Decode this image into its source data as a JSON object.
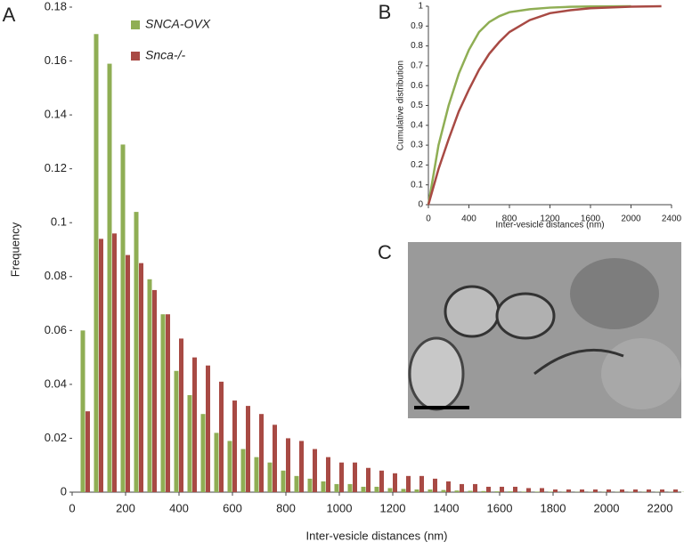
{
  "chart_data": [
    {
      "type": "bar",
      "panel_label": "A",
      "x_label": "Inter-vesicle distances (nm)",
      "y_label": "Frequency",
      "legend": "upper-left",
      "x": [
        50,
        100,
        150,
        200,
        250,
        300,
        350,
        400,
        450,
        500,
        550,
        600,
        650,
        700,
        750,
        800,
        850,
        900,
        950,
        1000,
        1050,
        1100,
        1150,
        1200,
        1250,
        1300,
        1350,
        1400,
        1450,
        1500,
        1550,
        1600,
        1650,
        1700,
        1750,
        1800,
        1850,
        1900,
        1950,
        2000,
        2050,
        2100,
        2150,
        2200,
        2250,
        2300,
        2350
      ],
      "series": [
        {
          "name": "SNCA-OVX",
          "color": "#8fae54",
          "values": [
            0.06,
            0.17,
            0.159,
            0.129,
            0.104,
            0.079,
            0.066,
            0.045,
            0.036,
            0.029,
            0.022,
            0.019,
            0.016,
            0.013,
            0.011,
            0.008,
            0.006,
            0.005,
            0.004,
            0.003,
            0.003,
            0.002,
            0.002,
            0.0015,
            0.0012,
            0.001,
            0.001,
            0.0008,
            0.0006,
            0.0005,
            0.0004,
            0.0003,
            0.0003,
            0.0002,
            0.0002,
            0.0002,
            0.0001,
            0.0001,
            0.0001,
            0.0001,
            0.0001,
            0.0001,
            0.0001,
            0.0001,
            0.0001,
            0.0001,
            0.0001
          ]
        },
        {
          "name": "Snca-/-",
          "color": "#a84a44",
          "values": [
            0.03,
            0.094,
            0.096,
            0.088,
            0.085,
            0.075,
            0.066,
            0.057,
            0.05,
            0.047,
            0.041,
            0.034,
            0.032,
            0.029,
            0.025,
            0.02,
            0.019,
            0.016,
            0.013,
            0.011,
            0.011,
            0.009,
            0.008,
            0.007,
            0.006,
            0.006,
            0.005,
            0.004,
            0.003,
            0.003,
            0.002,
            0.002,
            0.002,
            0.0015,
            0.0015,
            0.001,
            0.001,
            0.001,
            0.001,
            0.001,
            0.001,
            0.001,
            0.001,
            0.001,
            0.001,
            0.001,
            0.001
          ]
        }
      ],
      "xlim": [
        0,
        2330
      ],
      "xticks": [
        0,
        200,
        400,
        600,
        800,
        1000,
        1200,
        1400,
        1600,
        1800,
        2000,
        2200
      ],
      "ylim": [
        0,
        0.18
      ],
      "yticks": [
        0,
        0.02,
        0.04,
        0.06,
        0.08,
        0.1,
        0.12,
        0.14,
        0.16,
        0.18
      ]
    },
    {
      "type": "line",
      "panel_label": "B",
      "x_label": "Inter-vesicle distances (nm)",
      "y_label": "Cumulative distribution",
      "x": [
        0,
        100,
        200,
        300,
        400,
        500,
        600,
        700,
        800,
        1000,
        1200,
        1400,
        1600,
        2000,
        2300
      ],
      "series": [
        {
          "name": "SNCA-OVX",
          "color": "#8fae54",
          "values": [
            0,
            0.3,
            0.5,
            0.66,
            0.78,
            0.87,
            0.92,
            0.95,
            0.97,
            0.985,
            0.993,
            0.997,
            0.999,
            1,
            null
          ]
        },
        {
          "name": "Snca-/-",
          "color": "#a84a44",
          "values": [
            0,
            0.18,
            0.33,
            0.47,
            0.58,
            0.68,
            0.76,
            0.82,
            0.87,
            0.93,
            0.965,
            0.98,
            0.99,
            0.998,
            1
          ]
        }
      ],
      "xlim": [
        0,
        2400
      ],
      "xticks": [
        0,
        400,
        800,
        1200,
        1600,
        2000,
        2400
      ],
      "ylim": [
        0,
        1
      ],
      "yticks": [
        0,
        0.1,
        0.2,
        0.3,
        0.4,
        0.5,
        0.6,
        0.7,
        0.8,
        0.9,
        1
      ]
    }
  ],
  "panel_c": {
    "panel_label": "C"
  }
}
